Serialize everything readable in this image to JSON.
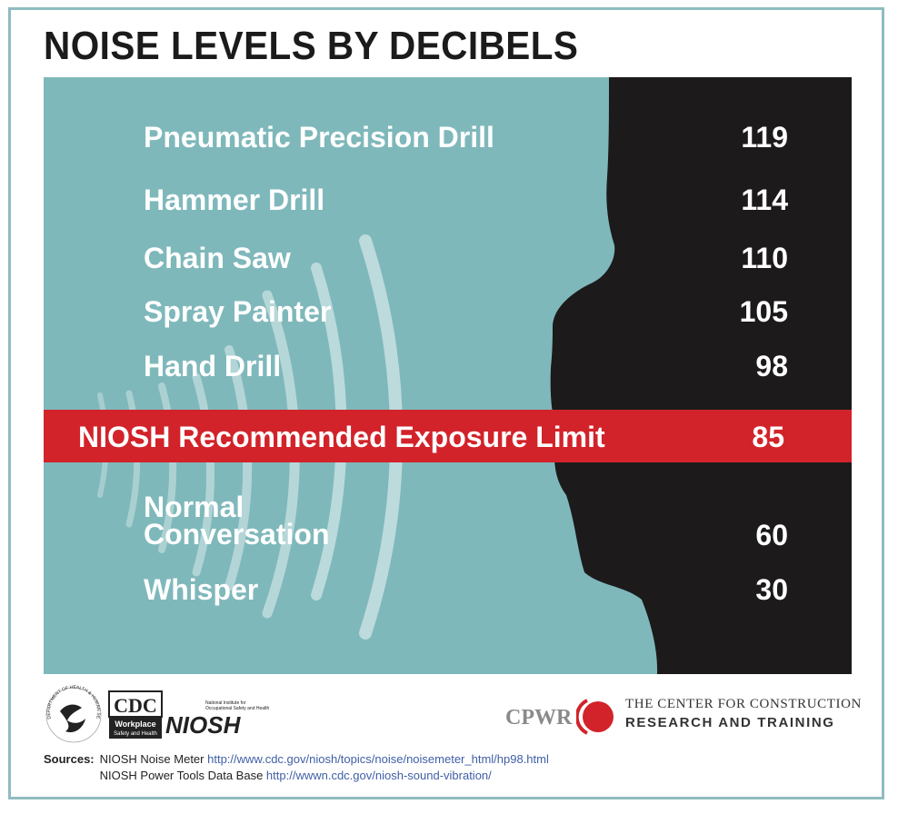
{
  "title": "NOISE LEVELS BY DECIBELS",
  "chart_data": {
    "type": "table",
    "rows": [
      {
        "label": "Pneumatic Precision Drill",
        "value": "119"
      },
      {
        "label": "Hammer Drill",
        "value": "114"
      },
      {
        "label": "Chain Saw",
        "value": "110"
      },
      {
        "label": "Spray Painter",
        "value": "105"
      },
      {
        "label": "Hand Drill",
        "value": "98"
      }
    ],
    "limit": {
      "label": "NIOSH Recommended Exposure Limit",
      "value": "85"
    },
    "rows_below": [
      {
        "label_line1": "Normal",
        "label_line2": "Conversation",
        "value": "60"
      },
      {
        "label": "Whisper",
        "value": "30"
      }
    ]
  },
  "colors": {
    "panel": "#7fb8bb",
    "band": "#d2232a",
    "silhouette": "#1c1a1b",
    "waves": "#c4dfe0",
    "border": "#8fbcc0"
  },
  "logos": {
    "hhs_seal_text": "DEPARTMENT OF HEALTH & HUMAN SERVICES · USA",
    "cdc": "CDC",
    "cdc_sub_1": "Workplace",
    "cdc_sub_2": "Safety and Health",
    "niosh": "NIOSH",
    "niosh_sub_1": "National Institute for",
    "niosh_sub_2": "Occupational Safety and Health",
    "cpwr": "CPWR",
    "cpwr_line1": "THE CENTER FOR CONSTRUCTION",
    "cpwr_line2": "RESEARCH AND TRAINING"
  },
  "sources": {
    "lead": "Sources:",
    "items": [
      {
        "name": "NIOSH Noise Meter",
        "url": "http://www.cdc.gov/niosh/topics/noise/noisemeter_html/hp98.html"
      },
      {
        "name": "NIOSH Power Tools Data Base",
        "url": "http://wwwn.cdc.gov/niosh-sound-vibration/"
      }
    ]
  }
}
